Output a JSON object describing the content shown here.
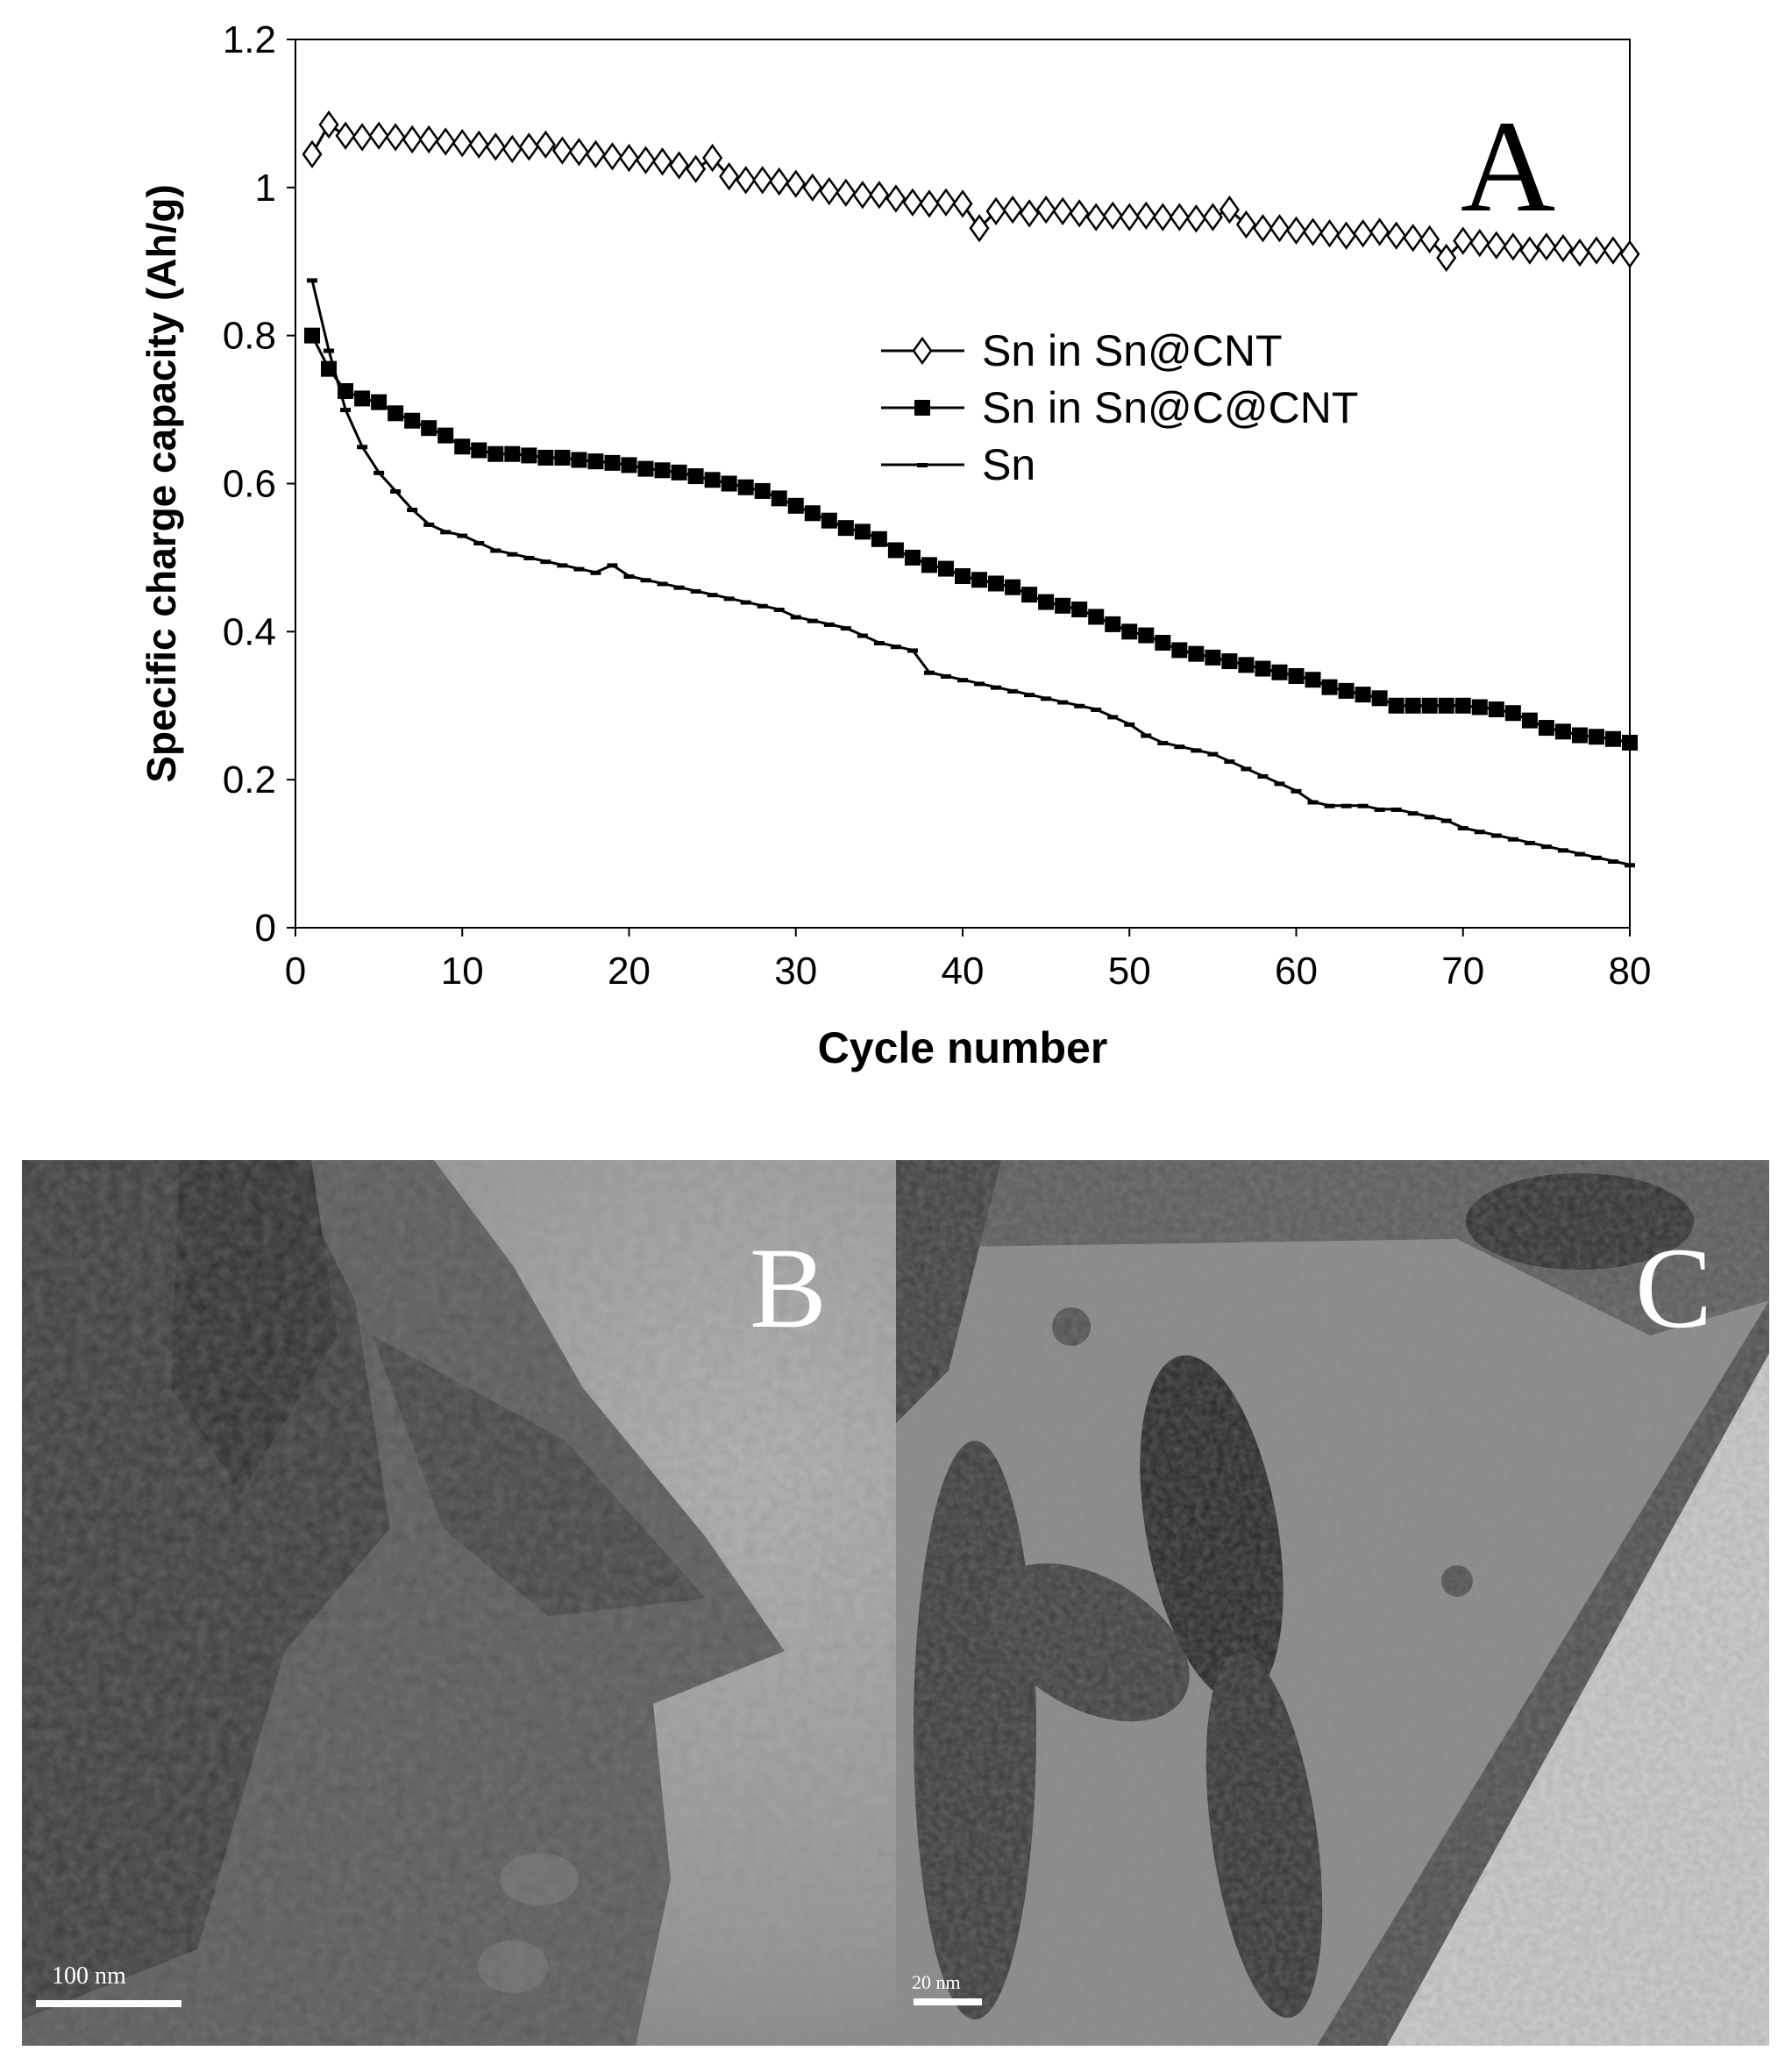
{
  "chart_data": {
    "type": "line",
    "panel_letter": "A",
    "xlabel": "Cycle number",
    "ylabel": "Specific charge capacity (Ah/g)",
    "xlim": [
      0,
      80
    ],
    "ylim": [
      0,
      1.2
    ],
    "xticks": [
      "0",
      "10",
      "20",
      "30",
      "40",
      "50",
      "60",
      "70",
      "80"
    ],
    "yticks": [
      "0",
      "0.2",
      "0.4",
      "0.6",
      "0.8",
      "1",
      "1.2"
    ],
    "grid": false,
    "legend_position": "center-right",
    "series": [
      {
        "name": "Sn in Sn@CNT",
        "marker": "open-diamond",
        "color": "#000000",
        "x": [
          1,
          2,
          3,
          4,
          5,
          6,
          7,
          8,
          9,
          10,
          11,
          12,
          13,
          14,
          15,
          16,
          17,
          18,
          19,
          20,
          21,
          22,
          23,
          24,
          25,
          26,
          27,
          28,
          29,
          30,
          31,
          32,
          33,
          34,
          35,
          36,
          37,
          38,
          39,
          40,
          41,
          42,
          43,
          44,
          45,
          46,
          47,
          48,
          49,
          50,
          51,
          52,
          53,
          54,
          55,
          56,
          57,
          58,
          59,
          60,
          61,
          62,
          63,
          64,
          65,
          66,
          67,
          68,
          69,
          70,
          71,
          72,
          73,
          74,
          75,
          76,
          77,
          78,
          79,
          80
        ],
        "values": [
          1.045,
          1.085,
          1.07,
          1.068,
          1.07,
          1.068,
          1.065,
          1.065,
          1.062,
          1.06,
          1.058,
          1.055,
          1.052,
          1.055,
          1.058,
          1.05,
          1.048,
          1.045,
          1.042,
          1.04,
          1.037,
          1.035,
          1.03,
          1.025,
          1.04,
          1.015,
          1.01,
          1.01,
          1.008,
          1.005,
          1.0,
          0.995,
          0.993,
          0.99,
          0.99,
          0.985,
          0.98,
          0.978,
          0.98,
          0.978,
          0.945,
          0.968,
          0.97,
          0.965,
          0.97,
          0.968,
          0.965,
          0.96,
          0.962,
          0.96,
          0.962,
          0.96,
          0.96,
          0.958,
          0.96,
          0.97,
          0.95,
          0.945,
          0.945,
          0.942,
          0.94,
          0.938,
          0.935,
          0.938,
          0.94,
          0.935,
          0.932,
          0.93,
          0.905,
          0.928,
          0.925,
          0.922,
          0.92,
          0.915,
          0.92,
          0.918,
          0.912,
          0.915,
          0.915,
          0.91
        ]
      },
      {
        "name": "Sn in Sn@C@CNT",
        "marker": "filled-square",
        "color": "#000000",
        "x": [
          1,
          2,
          3,
          4,
          5,
          6,
          7,
          8,
          9,
          10,
          11,
          12,
          13,
          14,
          15,
          16,
          17,
          18,
          19,
          20,
          21,
          22,
          23,
          24,
          25,
          26,
          27,
          28,
          29,
          30,
          31,
          32,
          33,
          34,
          35,
          36,
          37,
          38,
          39,
          40,
          41,
          42,
          43,
          44,
          45,
          46,
          47,
          48,
          49,
          50,
          51,
          52,
          53,
          54,
          55,
          56,
          57,
          58,
          59,
          60,
          61,
          62,
          63,
          64,
          65,
          66,
          67,
          68,
          69,
          70,
          71,
          72,
          73,
          74,
          75,
          76,
          77,
          78,
          79,
          80
        ],
        "values": [
          0.8,
          0.755,
          0.725,
          0.715,
          0.71,
          0.695,
          0.685,
          0.675,
          0.665,
          0.65,
          0.645,
          0.64,
          0.64,
          0.638,
          0.635,
          0.635,
          0.632,
          0.63,
          0.628,
          0.625,
          0.62,
          0.618,
          0.615,
          0.61,
          0.605,
          0.6,
          0.595,
          0.59,
          0.58,
          0.57,
          0.56,
          0.55,
          0.54,
          0.535,
          0.525,
          0.51,
          0.5,
          0.49,
          0.485,
          0.475,
          0.47,
          0.465,
          0.46,
          0.45,
          0.44,
          0.435,
          0.43,
          0.42,
          0.41,
          0.4,
          0.395,
          0.385,
          0.375,
          0.37,
          0.365,
          0.36,
          0.355,
          0.35,
          0.345,
          0.34,
          0.335,
          0.325,
          0.32,
          0.315,
          0.31,
          0.3,
          0.3,
          0.3,
          0.3,
          0.3,
          0.298,
          0.295,
          0.29,
          0.28,
          0.27,
          0.265,
          0.26,
          0.258,
          0.255,
          0.25
        ]
      },
      {
        "name": "Sn",
        "marker": "line-dash",
        "color": "#000000",
        "x": [
          1,
          2,
          3,
          4,
          5,
          6,
          7,
          8,
          9,
          10,
          11,
          12,
          13,
          14,
          15,
          16,
          17,
          18,
          19,
          20,
          21,
          22,
          23,
          24,
          25,
          26,
          27,
          28,
          29,
          30,
          31,
          32,
          33,
          34,
          35,
          36,
          37,
          38,
          39,
          40,
          41,
          42,
          43,
          44,
          45,
          46,
          47,
          48,
          49,
          50,
          51,
          52,
          53,
          54,
          55,
          56,
          57,
          58,
          59,
          60,
          61,
          62,
          63,
          64,
          65,
          66,
          67,
          68,
          69,
          70,
          71,
          72,
          73,
          74,
          75,
          76,
          77,
          78,
          79,
          80
        ],
        "values": [
          0.875,
          0.78,
          0.7,
          0.65,
          0.615,
          0.59,
          0.565,
          0.545,
          0.535,
          0.53,
          0.52,
          0.51,
          0.505,
          0.5,
          0.495,
          0.49,
          0.485,
          0.48,
          0.49,
          0.475,
          0.47,
          0.465,
          0.46,
          0.455,
          0.45,
          0.445,
          0.44,
          0.435,
          0.43,
          0.42,
          0.415,
          0.41,
          0.405,
          0.395,
          0.385,
          0.38,
          0.375,
          0.345,
          0.34,
          0.335,
          0.33,
          0.325,
          0.32,
          0.315,
          0.31,
          0.305,
          0.3,
          0.295,
          0.285,
          0.275,
          0.26,
          0.25,
          0.245,
          0.24,
          0.235,
          0.225,
          0.215,
          0.205,
          0.195,
          0.185,
          0.17,
          0.165,
          0.165,
          0.165,
          0.16,
          0.16,
          0.155,
          0.15,
          0.145,
          0.135,
          0.13,
          0.125,
          0.12,
          0.115,
          0.11,
          0.105,
          0.1,
          0.095,
          0.09,
          0.085
        ]
      }
    ]
  },
  "micrographs": [
    {
      "letter": "B",
      "scale_label": "100 nm"
    },
    {
      "letter": "C",
      "scale_label": "20 nm"
    }
  ]
}
